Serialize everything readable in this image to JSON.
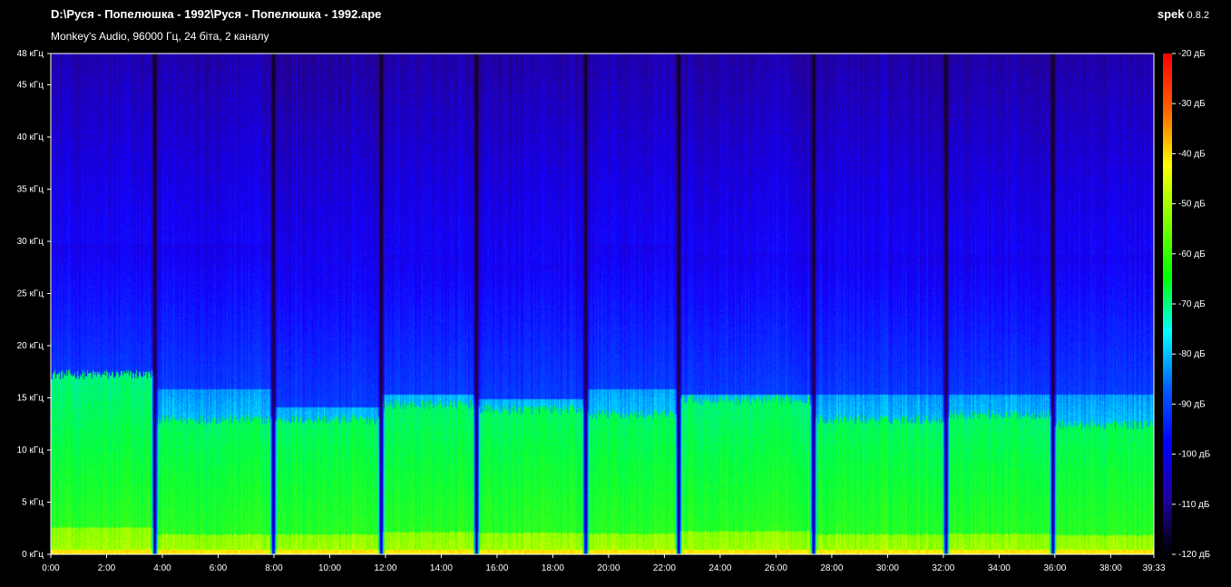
{
  "window": {
    "file_path": "D:\\Руся - Попелюшка - 1992\\Руся - Попелюшка - 1992.ape",
    "audio_info": "Monkey's Audio, 96000 Гц, 24 біта, 2 каналу",
    "app_name": "spek",
    "app_version": "0.8.2"
  },
  "frequency_axis": {
    "unit": "кГц",
    "max_khz": 48,
    "tick_labels": [
      "0 кГц",
      "5 кГц",
      "10 кГц",
      "15 кГц",
      "20 кГц",
      "25 кГц",
      "30 кГц",
      "35 кГц",
      "40 кГц",
      "45 кГц",
      "48 кГц"
    ],
    "tick_values": [
      0,
      5,
      10,
      15,
      20,
      25,
      30,
      35,
      40,
      45,
      48
    ]
  },
  "time_axis": {
    "tick_labels": [
      "0:00",
      "2:00",
      "4:00",
      "6:00",
      "8:00",
      "10:00",
      "12:00",
      "14:00",
      "16:00",
      "18:00",
      "20:00",
      "22:00",
      "24:00",
      "26:00",
      "28:00",
      "30:00",
      "32:00",
      "34:00",
      "36:00",
      "38:00",
      "39:33"
    ],
    "tick_seconds": [
      0,
      120,
      240,
      360,
      480,
      600,
      720,
      840,
      960,
      1080,
      1200,
      1320,
      1440,
      1560,
      1680,
      1800,
      1920,
      2040,
      2160,
      2280,
      2373
    ],
    "duration_seconds": 2373
  },
  "db_scale": {
    "tick_labels": [
      "-20 дБ",
      "-30 дБ",
      "-40 дБ",
      "-50 дБ",
      "-60 дБ",
      "-70 дБ",
      "-80 дБ",
      "-90 дБ",
      "-100 дБ",
      "-110 дБ",
      "-120 дБ"
    ],
    "tick_values": [
      -20,
      -30,
      -40,
      -50,
      -60,
      -70,
      -80,
      -90,
      -100,
      -110,
      -120
    ],
    "colors": [
      "#ff0000",
      "#ff6000",
      "#ffff00",
      "#80ff00",
      "#00ff00",
      "#00ffff",
      "#0060ff",
      "#0000ff",
      "#2000a0",
      "#000000"
    ]
  },
  "spectrogram": {
    "track_boundaries_seconds": [
      223,
      478,
      710,
      915,
      1150,
      1350,
      1640,
      1925,
      2155
    ]
  }
}
